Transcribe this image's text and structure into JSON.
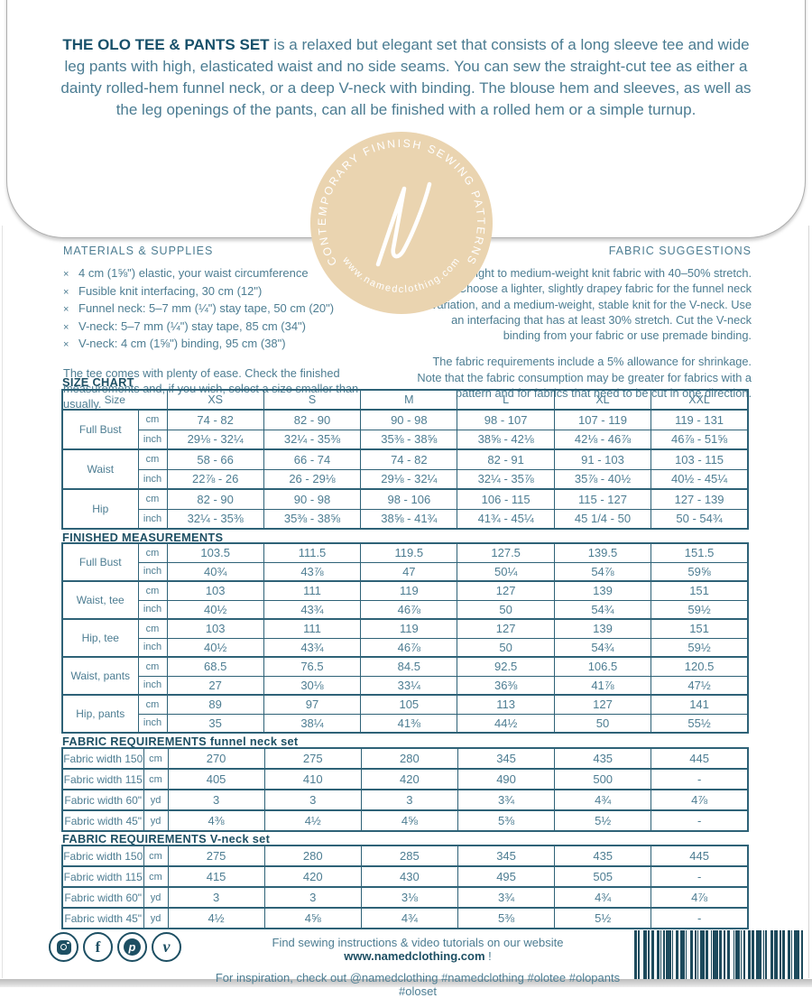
{
  "page": {
    "header_bold": "THE OLO TEE & PANTS SET",
    "header_rest": " is a relaxed but elegant set that consists of a long sleeve tee and wide leg pants with high, elasticated waist and no side seams. You can sew the straight-cut tee as either a dainty rolled-hem funnel neck, or a deep V-neck with binding. The blouse hem and sleeves, as well as the leg openings of the pants, can all be finished with a rolled hem or a simple turnup."
  },
  "logo": {
    "arc_top": "CONTEMPORARY FINNISH SEWING PATTERNS",
    "arc_bottom": "www.namedclothing.com",
    "monogram": "N"
  },
  "materials": {
    "title": "MATERIALS & SUPPLIES",
    "bullet": "×",
    "items": [
      "4 cm (1⅝\") elastic, your waist circumference",
      "Fusible knit interfacing, 30 cm (12\")",
      "Funnel neck: 5–7 mm (¼\") stay tape, 50 cm (20\")",
      "V-neck: 5–7 mm (¼\") stay tape, 85 cm (34\")",
      "V-neck: 4 cm (1⅝\") binding, 95 cm (38\")"
    ],
    "note": "The tee comes with plenty of ease. Check the finished measurements and, if you wish, select a size smaller than usually."
  },
  "fabric_suggestions": {
    "title": "FABRIC SUGGESTIONS",
    "para1": "Select a light to medium-weight knit fabric with 40–50% stretch. Choose a lighter, slightly drapey fabric for the funnel neck variation, and a medium-weight, stable knit for the V-neck. Use an interfacing that has at least 30% stretch. Cut the V-neck binding from your fabric or use premade binding.",
    "para2": "The fabric requirements include a 5% allowance for shrinkage. Note that the fabric consumption may be greater for fabrics with a pattern and for fabrics that need to be cut in one direction."
  },
  "size_chart": {
    "title": "SIZE CHART",
    "header": {
      "corner": "Size",
      "cols": [
        "XS",
        "S",
        "M",
        "L",
        "XL",
        "XXL"
      ]
    },
    "groups": [
      {
        "label": "Full Bust",
        "rows": [
          {
            "unit": "cm",
            "values": [
              "74 - 82",
              "82 - 90",
              "90 - 98",
              "98 - 107",
              "107 - 119",
              "119 - 131"
            ]
          },
          {
            "unit": "inch",
            "values": [
              "29⅛ - 32¼",
              "32¼ - 35⅜",
              "35⅜ - 38⅝",
              "38⅝ - 42⅛",
              "42⅛ - 46⅞",
              "46⅞ - 51⅝"
            ]
          }
        ]
      },
      {
        "label": "Waist",
        "rows": [
          {
            "unit": "cm",
            "values": [
              "58 - 66",
              "66 - 74",
              "74 - 82",
              "82 - 91",
              "91 - 103",
              "103 - 115"
            ]
          },
          {
            "unit": "inch",
            "values": [
              "22⅞ - 26",
              "26 - 29⅛",
              "29⅛ - 32¼",
              "32¼ - 35⅞",
              "35⅞ - 40½",
              "40½ - 45¼"
            ]
          }
        ]
      },
      {
        "label": "Hip",
        "rows": [
          {
            "unit": "cm",
            "values": [
              "82 - 90",
              "90 - 98",
              "98 - 106",
              "106 - 115",
              "115 - 127",
              "127 - 139"
            ]
          },
          {
            "unit": "inch",
            "values": [
              "32¼ - 35⅜",
              "35⅜ - 38⅝",
              "38⅝ - 41¾",
              "41¾ - 45¼",
              "45 1/4 - 50",
              "50 - 54¾"
            ]
          }
        ]
      }
    ]
  },
  "finished_measurements": {
    "title": "FINISHED MEASUREMENTS",
    "groups": [
      {
        "label": "Full Bust",
        "rows": [
          {
            "unit": "cm",
            "values": [
              "103.5",
              "111.5",
              "119.5",
              "127.5",
              "139.5",
              "151.5"
            ]
          },
          {
            "unit": "inch",
            "values": [
              "40¾",
              "43⅞",
              "47",
              "50¼",
              "54⅞",
              "59⅝"
            ]
          }
        ]
      },
      {
        "label": "Waist, tee",
        "rows": [
          {
            "unit": "cm",
            "values": [
              "103",
              "111",
              "119",
              "127",
              "139",
              "151"
            ]
          },
          {
            "unit": "inch",
            "values": [
              "40½",
              "43¾",
              "46⅞",
              "50",
              "54¾",
              "59½"
            ]
          }
        ]
      },
      {
        "label": "Hip, tee",
        "rows": [
          {
            "unit": "cm",
            "values": [
              "103",
              "111",
              "119",
              "127",
              "139",
              "151"
            ]
          },
          {
            "unit": "inch",
            "values": [
              "40½",
              "43¾",
              "46⅞",
              "50",
              "54¾",
              "59½"
            ]
          }
        ]
      },
      {
        "label": "Waist, pants",
        "rows": [
          {
            "unit": "cm",
            "values": [
              "68.5",
              "76.5",
              "84.5",
              "92.5",
              "106.5",
              "120.5"
            ]
          },
          {
            "unit": "inch",
            "values": [
              "27",
              "30⅛",
              "33¼",
              "36⅜",
              "41⅞",
              "47½"
            ]
          }
        ]
      },
      {
        "label": "Hip, pants",
        "rows": [
          {
            "unit": "cm",
            "values": [
              "89",
              "97",
              "105",
              "113",
              "127",
              "141"
            ]
          },
          {
            "unit": "inch",
            "values": [
              "35",
              "38¼",
              "41⅜",
              "44½",
              "50",
              "55½"
            ]
          }
        ]
      }
    ]
  },
  "fabric_requirements_funnel": {
    "title": "FABRIC REQUIREMENTS funnel neck set",
    "groups": [
      {
        "label": "Fabric width 150",
        "rows": [
          {
            "unit": "cm",
            "values": [
              "270",
              "275",
              "280",
              "345",
              "435",
              "445"
            ]
          }
        ]
      },
      {
        "label": "Fabric width 115",
        "rows": [
          {
            "unit": "cm",
            "values": [
              "405",
              "410",
              "420",
              "490",
              "500",
              "-"
            ]
          }
        ]
      },
      {
        "label": "Fabric width 60\"",
        "rows": [
          {
            "unit": "yd",
            "values": [
              "3",
              "3",
              "3",
              "3¾",
              "4¾",
              "4⅞"
            ]
          }
        ]
      },
      {
        "label": "Fabric width 45\"",
        "rows": [
          {
            "unit": "yd",
            "values": [
              "4⅜",
              "4½",
              "4⅝",
              "5⅜",
              "5½",
              "-"
            ]
          }
        ]
      }
    ]
  },
  "fabric_requirements_vneck": {
    "title": "FABRIC REQUIREMENTS V-neck set",
    "groups": [
      {
        "label": "Fabric width 150",
        "rows": [
          {
            "unit": "cm",
            "values": [
              "275",
              "280",
              "285",
              "345",
              "435",
              "445"
            ]
          }
        ]
      },
      {
        "label": "Fabric width 115",
        "rows": [
          {
            "unit": "cm",
            "values": [
              "415",
              "420",
              "430",
              "495",
              "505",
              "-"
            ]
          }
        ]
      },
      {
        "label": "Fabric width 60\"",
        "rows": [
          {
            "unit": "yd",
            "values": [
              "3",
              "3",
              "3⅛",
              "3¾",
              "4¾",
              "4⅞"
            ]
          }
        ]
      },
      {
        "label": "Fabric width 45\"",
        "rows": [
          {
            "unit": "yd",
            "values": [
              "4½",
              "4⅝",
              "4¾",
              "5⅜",
              "5½",
              "-"
            ]
          }
        ]
      }
    ]
  },
  "footer": {
    "line1_prefix": "Find sewing instructions & video tutorials on our website ",
    "line1_bold": "www.namedclothing.com",
    "line1_suffix": " !",
    "line2": "For inspiration, check out @namedclothing #namedclothing #olotee #olopants #oloset",
    "social": [
      "instagram",
      "facebook",
      "pinterest",
      "vimeo"
    ],
    "glyphs": {
      "facebook": "f",
      "pinterest": "p",
      "vimeo": "v"
    }
  },
  "colors": {
    "accent_dark": "#1d4f63",
    "accent": "#4d7d92",
    "stamp_tan": "#ead4b0",
    "table_border": "#2e6277",
    "barcode": "#1d4a5c"
  }
}
